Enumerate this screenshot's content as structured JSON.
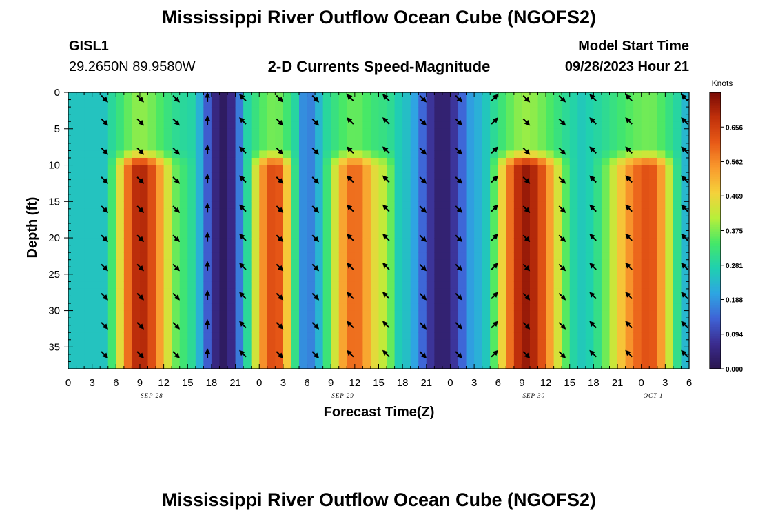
{
  "page": {
    "title": "Mississippi River Outflow Ocean Cube (NGOFS2)",
    "title_repeat": "Mississippi River Outflow Ocean Cube (NGOFS2)",
    "station_id": "GISL1",
    "station_coords": "29.2650N  89.9580W",
    "subtitle": "2-D Currents Speed-Magnitude",
    "model_start_label": "Model Start Time",
    "model_start_value": "09/28/2023 Hour 21"
  },
  "chart_data": {
    "type": "heatmap",
    "title": "2-D Currents Speed-Magnitude",
    "xlabel": "Forecast Time(Z)",
    "ylabel": "Depth (ft)",
    "x_range_hours": [
      0,
      78
    ],
    "ylim": [
      0,
      38
    ],
    "y_inverted": true,
    "x_tick_labels": [
      "0",
      "3",
      "6",
      "9",
      "12",
      "15",
      "18",
      "21",
      "0",
      "3",
      "6",
      "9",
      "12",
      "15",
      "18",
      "21",
      "0",
      "3",
      "6",
      "9",
      "12",
      "15",
      "18",
      "21",
      "0",
      "3",
      "6"
    ],
    "y_ticks": [
      0,
      5,
      10,
      15,
      20,
      25,
      30,
      35
    ],
    "y_tick_labels": [
      "0",
      "5",
      "10",
      "15",
      "20",
      "25",
      "30",
      "35"
    ],
    "date_labels": [
      {
        "text": "SEP 28",
        "hour": 10.5
      },
      {
        "text": "SEP 29",
        "hour": 34.5
      },
      {
        "text": "SEP 30",
        "hour": 58.5
      },
      {
        "text": "OCT 1",
        "hour": 73.5
      }
    ],
    "colorbar": {
      "units": "Knots",
      "tick_labels": [
        "0.000",
        "0.094",
        "0.188",
        "0.281",
        "0.375",
        "0.469",
        "0.562",
        "0.656"
      ],
      "max": 0.75,
      "colors": [
        "#2a1650",
        "#3b2c8f",
        "#3f63d6",
        "#2ea6e2",
        "#1fd0b0",
        "#45e868",
        "#b8ef3a",
        "#f5d13b",
        "#f99a2d",
        "#e85a17",
        "#c0300b",
        "#7a0a05"
      ]
    },
    "speed_peaks": [
      {
        "hour": 4.5,
        "speed": 0.28
      },
      {
        "hour": 9,
        "speed": 0.7
      },
      {
        "hour": 14.5,
        "speed": 0.33
      },
      {
        "hour": 19.5,
        "speed": 0.02
      },
      {
        "hour": 26,
        "speed": 0.64
      },
      {
        "hour": 30,
        "speed": 0.16
      },
      {
        "hour": 36,
        "speed": 0.6
      },
      {
        "hour": 39.5,
        "speed": 0.42
      },
      {
        "hour": 42,
        "speed": 0.25
      },
      {
        "hour": 47,
        "speed": 0.03
      },
      {
        "hour": 51.5,
        "speed": 0.22
      },
      {
        "hour": 57.5,
        "speed": 0.72
      },
      {
        "hour": 64.5,
        "speed": 0.26
      },
      {
        "hour": 73,
        "speed": 0.63
      },
      {
        "hour": 78,
        "speed": 0.22
      }
    ],
    "vector_rows_depth_ft": [
      0.8,
      4,
      8,
      12,
      16,
      20,
      24,
      28,
      32,
      36
    ],
    "vector_columns": [
      {
        "hour": 4.5,
        "dir": "SE"
      },
      {
        "hour": 9,
        "dir": "SE"
      },
      {
        "hour": 13.5,
        "dir": "SE"
      },
      {
        "hour": 17.5,
        "dir": "N"
      },
      {
        "hour": 22,
        "dir": "NW"
      },
      {
        "hour": 26.5,
        "dir": "SE"
      },
      {
        "hour": 31,
        "dir": "SE"
      },
      {
        "hour": 35.5,
        "dir": "NW"
      },
      {
        "hour": 40,
        "dir": "NW"
      },
      {
        "hour": 44.5,
        "dir": "SE"
      },
      {
        "hour": 49,
        "dir": "SE"
      },
      {
        "hour": 53.5,
        "dir": "NE"
      },
      {
        "hour": 57.5,
        "dir": "SE"
      },
      {
        "hour": 62,
        "dir": "SE"
      },
      {
        "hour": 66,
        "dir": "NW"
      },
      {
        "hour": 70.5,
        "dir": "NW"
      },
      {
        "hour": 77.5,
        "dir": "NW"
      }
    ]
  }
}
